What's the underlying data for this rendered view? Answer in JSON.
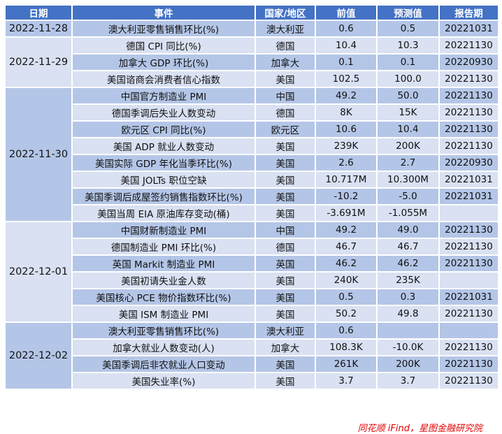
{
  "headers": [
    "日期",
    "事件",
    "国家/地区",
    "前值",
    "预测值",
    "报告期"
  ],
  "groups": [
    {
      "date": "2022-11-28",
      "rows": [
        [
          "澳大利亚零售销售环比(%)",
          "澳大利亚",
          "0.6",
          "0.5",
          "20221031"
        ]
      ]
    },
    {
      "date": "2022-11-29",
      "rows": [
        [
          "德国 CPI 同比(%)",
          "德国",
          "10.4",
          "10.3",
          "20221130"
        ],
        [
          "加拿大 GDP 环比(%)",
          "加拿大",
          "0.1",
          "0.1",
          "20220930"
        ],
        [
          "美国谘商会消费者信心指数",
          "美国",
          "102.5",
          "100.0",
          "20221130"
        ]
      ]
    },
    {
      "date": "2022-11-30",
      "rows": [
        [
          "中国官方制造业 PMI",
          "中国",
          "49.2",
          "50.0",
          "20221130"
        ],
        [
          "德国季调后失业人数变动",
          "德国",
          "8K",
          "15K",
          "20221130"
        ],
        [
          "欧元区 CPI 同比(%)",
          "欧元区",
          "10.6",
          "10.4",
          "20221130"
        ],
        [
          "美国 ADP 就业人数变动",
          "美国",
          "239K",
          "200K",
          "20221130"
        ],
        [
          "美国实际 GDP 年化当季环比(%)",
          "美国",
          "2.6",
          "2.7",
          "20220930"
        ],
        [
          "美国 JOLTs 职位空缺",
          "美国",
          "10.717M",
          "10.300M",
          "20221031"
        ],
        [
          "美国季调后成屋签约销售指数环比(%)",
          "美国",
          "-10.2",
          "-5.0",
          "20221031"
        ],
        [
          "美国当周 EIA 原油库存变动(桶)",
          "美国",
          "-3.691M",
          "-1.055M",
          ""
        ]
      ]
    },
    {
      "date": "2022-12-01",
      "rows": [
        [
          "中国财新制造业 PMI",
          "中国",
          "49.2",
          "49.0",
          "20221130"
        ],
        [
          "德国制造业 PMI 环比(%)",
          "德国",
          "46.7",
          "46.7",
          "20221130"
        ],
        [
          "英国 Markit 制造业 PMI",
          "英国",
          "46.2",
          "46.2",
          "20221130"
        ],
        [
          "美国初请失业金人数",
          "美国",
          "240K",
          "235K",
          ""
        ],
        [
          "美国核心 PCE 物价指数环比(%)",
          "美国",
          "0.5",
          "0.3",
          "20221031"
        ],
        [
          "美国 ISM 制造业 PMI",
          "美国",
          "50.2",
          "49.8",
          "20221130"
        ]
      ]
    },
    {
      "date": "2022-12-02",
      "rows": [
        [
          "澳大利亚零售销售环比(%)",
          "澳大利亚",
          "0.6",
          "",
          ""
        ],
        [
          "加拿大就业人数变动(人)",
          "加拿大",
          "108.3K",
          "-10.0K",
          "20221130"
        ],
        [
          "美国季调后非农就业人口变动",
          "美国",
          "261K",
          "200K",
          "20221130"
        ],
        [
          "美国失业率(%)",
          "美国",
          "3.7",
          "3.7",
          "20221130"
        ]
      ]
    }
  ],
  "source": "同花顺 iFind，星图金融研究院",
  "colors": {
    "header": "#4472c4",
    "row_dark": "#b4c6e7",
    "row_light": "#d9e1f2",
    "source": "#e00000"
  }
}
